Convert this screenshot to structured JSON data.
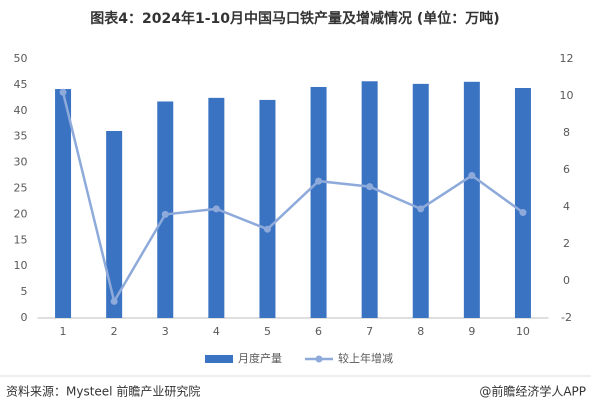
{
  "chart_data": {
    "type": "bar",
    "title": "图表4：2024年1-10月中国马口铁产量及增减情况 (单位：万吨)",
    "categories": [
      "1",
      "2",
      "3",
      "4",
      "5",
      "6",
      "7",
      "8",
      "9",
      "10"
    ],
    "series": [
      {
        "name": "月度产量",
        "type": "bar",
        "color": "#3b73c3",
        "values": [
          44.2,
          36.1,
          41.8,
          42.5,
          42.1,
          44.6,
          45.7,
          45.2,
          45.6,
          44.4
        ]
      },
      {
        "name": "较上年增减",
        "type": "line",
        "axis": "y2",
        "color": "#8eaadb",
        "values": [
          10.2,
          -1.1,
          3.6,
          3.9,
          2.8,
          5.4,
          5.1,
          3.9,
          5.7,
          3.7
        ]
      }
    ],
    "ylim": [
      0,
      50
    ],
    "yticks": [
      0,
      5,
      10,
      15,
      20,
      25,
      30,
      35,
      40,
      45,
      50
    ],
    "y2lim": [
      -2,
      12
    ],
    "y2ticks": [
      -2,
      0,
      2,
      4,
      6,
      8,
      10,
      12
    ],
    "legend": "bottom",
    "source": "资料来源：Mysteel 前瞻产业研究院",
    "attribution": "@前瞻经济学人APP"
  }
}
